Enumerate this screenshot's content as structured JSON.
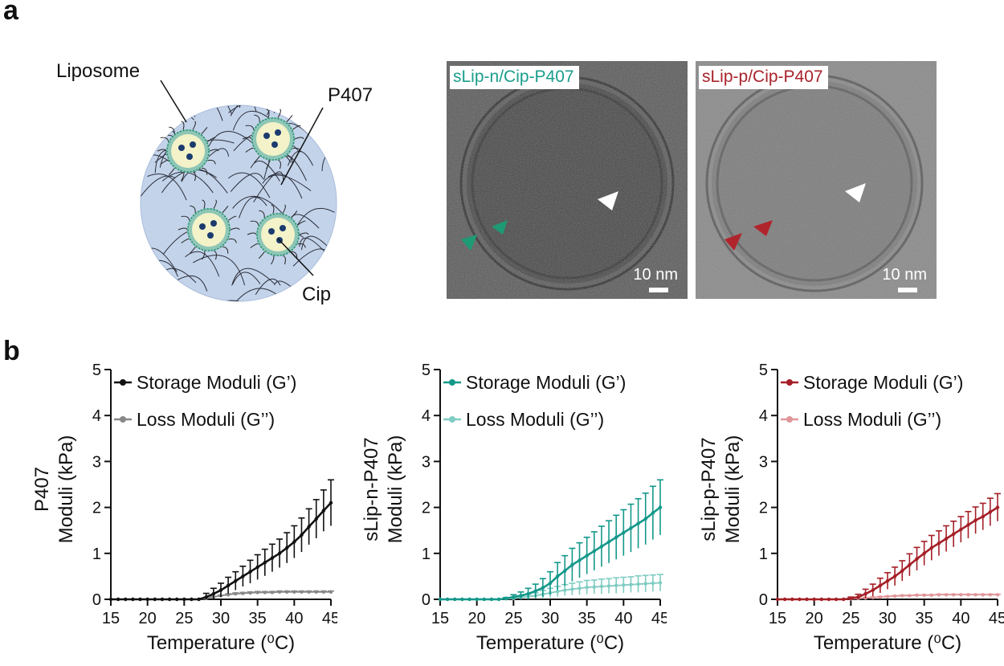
{
  "panels": {
    "a": "a",
    "b": "b"
  },
  "schematic": {
    "liposome_label": "Liposome",
    "p407_label": "P407",
    "cip_label": "Cip"
  },
  "micrographs": [
    {
      "label": "sLip-n/Cip-P407",
      "label_color": "#1a9e8c",
      "scale_bar": "10 nm",
      "arrow_color": "#1e9a74"
    },
    {
      "label": "sLip-p/Cip-P407",
      "label_color": "#a8232a",
      "scale_bar": "10 nm",
      "arrow_color": "#b0242c"
    }
  ],
  "chart_data": [
    {
      "type": "line",
      "color": "#111111",
      "loss_color": "#888888",
      "ylabel_top": "P407",
      "ylabel": "Moduli (kPa)",
      "xlabel": "Temperature (⁰C)",
      "xlim": [
        15,
        45
      ],
      "ylim": [
        0,
        5
      ],
      "xticks": [
        15,
        20,
        25,
        30,
        35,
        40,
        45
      ],
      "yticks": [
        0,
        1,
        2,
        3,
        4,
        5
      ],
      "legend": [
        "Storage Moduli (G’)",
        "Loss Moduli (G’’)"
      ],
      "series": [
        {
          "name": "Storage Moduli (G’)",
          "x": [
            15,
            16,
            17,
            18,
            19,
            20,
            21,
            22,
            23,
            24,
            25,
            26,
            27,
            28,
            29,
            30,
            31,
            32,
            33,
            34,
            35,
            36,
            37,
            38,
            39,
            40,
            41,
            42,
            43,
            44,
            45
          ],
          "y": [
            0,
            0,
            0,
            0,
            0,
            0,
            0,
            0,
            0,
            0,
            0,
            0,
            0,
            0.05,
            0.12,
            0.2,
            0.3,
            0.4,
            0.5,
            0.6,
            0.7,
            0.8,
            0.9,
            1.0,
            1.12,
            1.25,
            1.4,
            1.58,
            1.75,
            1.93,
            2.1
          ],
          "err": [
            0,
            0,
            0,
            0,
            0,
            0,
            0,
            0,
            0,
            0,
            0,
            0,
            0,
            0.08,
            0.12,
            0.15,
            0.18,
            0.2,
            0.22,
            0.25,
            0.27,
            0.29,
            0.3,
            0.31,
            0.33,
            0.35,
            0.37,
            0.39,
            0.42,
            0.45,
            0.5
          ]
        },
        {
          "name": "Loss Moduli (G’’)",
          "x": [
            15,
            16,
            17,
            18,
            19,
            20,
            21,
            22,
            23,
            24,
            25,
            26,
            27,
            28,
            29,
            30,
            31,
            32,
            33,
            34,
            35,
            36,
            37,
            38,
            39,
            40,
            41,
            42,
            43,
            44,
            45
          ],
          "y": [
            0,
            0,
            0,
            0,
            0,
            0,
            0,
            0,
            0,
            0,
            0,
            0,
            0,
            0.02,
            0.05,
            0.08,
            0.1,
            0.12,
            0.13,
            0.14,
            0.15,
            0.15,
            0.15,
            0.16,
            0.16,
            0.16,
            0.16,
            0.16,
            0.16,
            0.16,
            0.16
          ],
          "err": [
            0,
            0,
            0,
            0,
            0,
            0,
            0,
            0,
            0,
            0,
            0,
            0,
            0,
            0.01,
            0.01,
            0.01,
            0.02,
            0.02,
            0.02,
            0.02,
            0.02,
            0.02,
            0.02,
            0.02,
            0.02,
            0.02,
            0.02,
            0.02,
            0.02,
            0.02,
            0.02
          ]
        }
      ]
    },
    {
      "type": "line",
      "color": "#14988a",
      "loss_color": "#7fccc2",
      "ylabel_top": "sLip-n-P407",
      "ylabel": "Moduli (kPa)",
      "xlabel": "Temperature (⁰C)",
      "xlim": [
        15,
        45
      ],
      "ylim": [
        0,
        5
      ],
      "xticks": [
        15,
        20,
        25,
        30,
        35,
        40,
        45
      ],
      "yticks": [
        0,
        1,
        2,
        3,
        4,
        5
      ],
      "legend": [
        "Storage Moduli (G’)",
        "Loss Moduli (G’’)"
      ],
      "series": [
        {
          "name": "Storage Moduli (G’)",
          "x": [
            15,
            16,
            17,
            18,
            19,
            20,
            21,
            22,
            23,
            24,
            25,
            26,
            27,
            28,
            29,
            30,
            31,
            32,
            33,
            34,
            35,
            36,
            37,
            38,
            39,
            40,
            41,
            42,
            43,
            44,
            45
          ],
          "y": [
            0,
            0,
            0,
            0,
            0,
            0,
            0,
            0,
            0,
            0.02,
            0.05,
            0.08,
            0.12,
            0.18,
            0.25,
            0.35,
            0.5,
            0.62,
            0.75,
            0.85,
            0.95,
            1.05,
            1.15,
            1.25,
            1.35,
            1.45,
            1.55,
            1.65,
            1.75,
            1.88,
            2.0
          ],
          "err": [
            0,
            0,
            0,
            0,
            0,
            0,
            0,
            0,
            0,
            0.02,
            0.05,
            0.08,
            0.12,
            0.15,
            0.2,
            0.25,
            0.3,
            0.33,
            0.36,
            0.38,
            0.4,
            0.42,
            0.44,
            0.46,
            0.48,
            0.5,
            0.52,
            0.54,
            0.56,
            0.58,
            0.6
          ]
        },
        {
          "name": "Loss Moduli (G’’)",
          "x": [
            15,
            16,
            17,
            18,
            19,
            20,
            21,
            22,
            23,
            24,
            25,
            26,
            27,
            28,
            29,
            30,
            31,
            32,
            33,
            34,
            35,
            36,
            37,
            38,
            39,
            40,
            41,
            42,
            43,
            44,
            45
          ],
          "y": [
            0,
            0,
            0,
            0,
            0,
            0,
            0,
            0,
            0,
            0.01,
            0.02,
            0.04,
            0.06,
            0.08,
            0.11,
            0.14,
            0.17,
            0.2,
            0.22,
            0.24,
            0.26,
            0.27,
            0.28,
            0.29,
            0.3,
            0.31,
            0.32,
            0.33,
            0.34,
            0.35,
            0.36
          ],
          "err": [
            0,
            0,
            0,
            0,
            0,
            0,
            0,
            0,
            0,
            0.01,
            0.02,
            0.03,
            0.05,
            0.06,
            0.08,
            0.1,
            0.11,
            0.12,
            0.13,
            0.14,
            0.15,
            0.15,
            0.16,
            0.16,
            0.17,
            0.17,
            0.17,
            0.18,
            0.18,
            0.18,
            0.18
          ]
        }
      ]
    },
    {
      "type": "line",
      "color": "#a51f27",
      "loss_color": "#e0979a",
      "ylabel_top": "sLip-p-P407",
      "ylabel": "Moduli (kPa)",
      "xlabel": "Temperature (⁰C)",
      "xlim": [
        15,
        45
      ],
      "ylim": [
        0,
        5
      ],
      "xticks": [
        15,
        20,
        25,
        30,
        35,
        40,
        45
      ],
      "yticks": [
        0,
        1,
        2,
        3,
        4,
        5
      ],
      "legend": [
        "Storage Moduli (G’)",
        "Loss Moduli (G’’)"
      ],
      "series": [
        {
          "name": "Storage Moduli (G’)",
          "x": [
            15,
            16,
            17,
            18,
            19,
            20,
            21,
            22,
            23,
            24,
            25,
            26,
            27,
            28,
            29,
            30,
            31,
            32,
            33,
            34,
            35,
            36,
            37,
            38,
            39,
            40,
            41,
            42,
            43,
            44,
            45
          ],
          "y": [
            0,
            0,
            0,
            0,
            0,
            0,
            0,
            0,
            0,
            0,
            0.02,
            0.05,
            0.12,
            0.2,
            0.3,
            0.4,
            0.5,
            0.62,
            0.75,
            0.88,
            1.0,
            1.12,
            1.22,
            1.32,
            1.42,
            1.52,
            1.62,
            1.72,
            1.8,
            1.9,
            2.0
          ],
          "err": [
            0,
            0,
            0,
            0,
            0,
            0,
            0,
            0,
            0,
            0,
            0.03,
            0.06,
            0.1,
            0.13,
            0.16,
            0.18,
            0.2,
            0.22,
            0.24,
            0.25,
            0.26,
            0.27,
            0.27,
            0.28,
            0.28,
            0.28,
            0.29,
            0.29,
            0.29,
            0.3,
            0.3
          ]
        },
        {
          "name": "Loss Moduli (G’’)",
          "x": [
            15,
            16,
            17,
            18,
            19,
            20,
            21,
            22,
            23,
            24,
            25,
            26,
            27,
            28,
            29,
            30,
            31,
            32,
            33,
            34,
            35,
            36,
            37,
            38,
            39,
            40,
            41,
            42,
            43,
            44,
            45
          ],
          "y": [
            0,
            0,
            0,
            0,
            0,
            0,
            0,
            0,
            0,
            0,
            0.01,
            0.02,
            0.03,
            0.04,
            0.05,
            0.06,
            0.07,
            0.08,
            0.08,
            0.09,
            0.09,
            0.09,
            0.1,
            0.1,
            0.1,
            0.1,
            0.1,
            0.1,
            0.1,
            0.1,
            0.1
          ],
          "err": [
            0,
            0,
            0,
            0,
            0,
            0,
            0,
            0,
            0,
            0,
            0.01,
            0.01,
            0.01,
            0.01,
            0.01,
            0.01,
            0.01,
            0.01,
            0.01,
            0.01,
            0.01,
            0.01,
            0.01,
            0.01,
            0.01,
            0.01,
            0.01,
            0.01,
            0.01,
            0.01,
            0.01
          ]
        }
      ]
    }
  ]
}
